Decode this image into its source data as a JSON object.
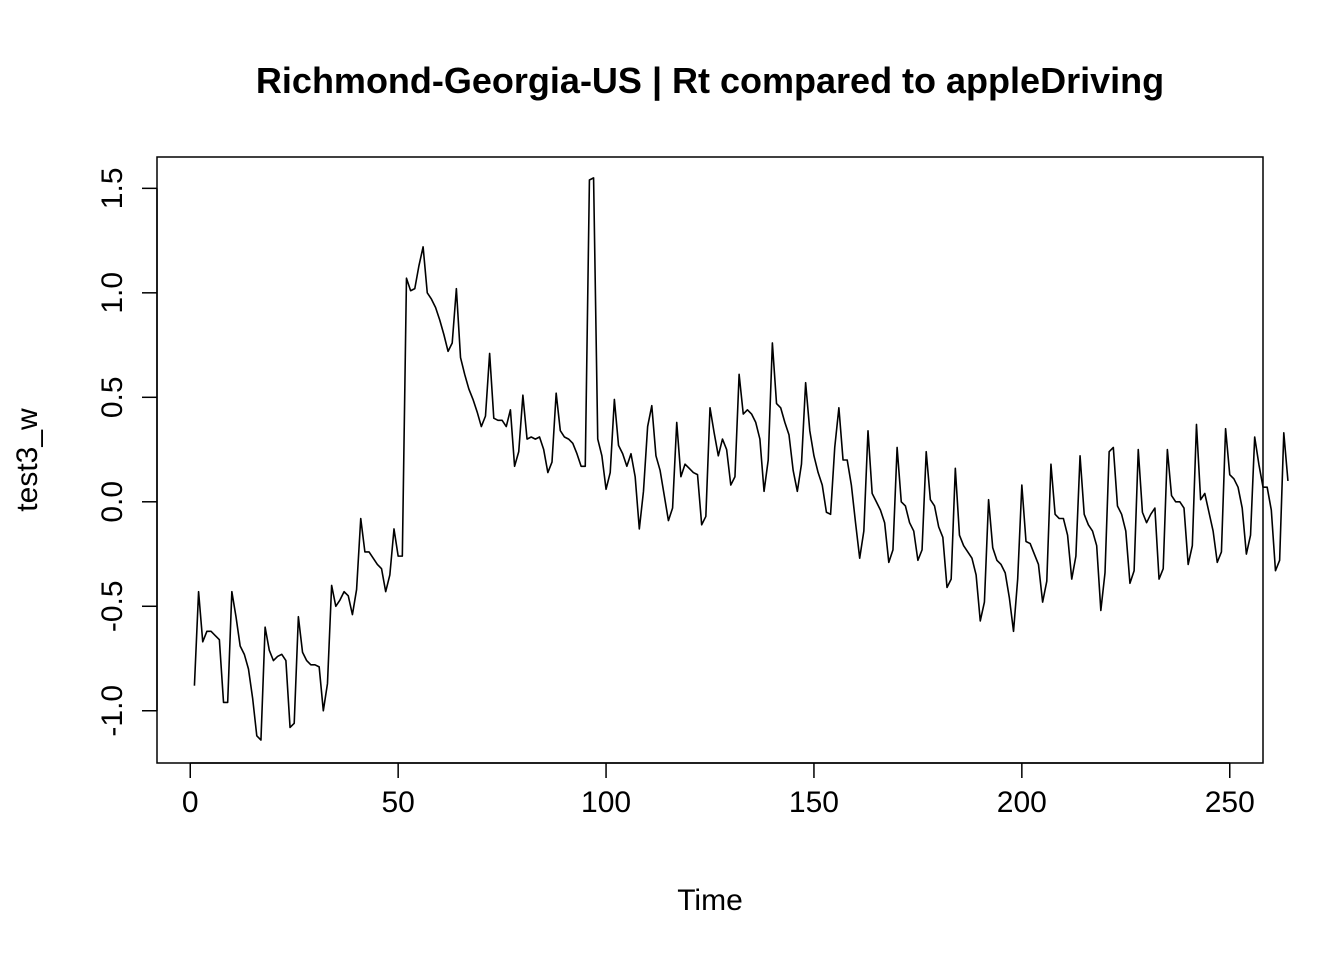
{
  "chart_data": {
    "type": "line",
    "title": "Richmond-Georgia-US | Rt compared to appleDriving",
    "xlabel": "Time",
    "ylabel": "test3_w",
    "xlim": [
      -8,
      258
    ],
    "ylim": [
      -1.25,
      1.65
    ],
    "xticks": [
      0,
      50,
      100,
      150,
      200,
      250
    ],
    "yticks": [
      -1.0,
      -0.5,
      0.0,
      0.5,
      1.0,
      1.5
    ],
    "xtick_labels": [
      "0",
      "50",
      "100",
      "150",
      "200",
      "250"
    ],
    "ytick_labels": [
      "-1.0",
      "-0.5",
      "0.0",
      "0.5",
      "1.0",
      "1.5"
    ],
    "grid": false,
    "legend": "none",
    "series": [
      {
        "color": "#000000",
        "x_start": 1,
        "values": [
          -0.88,
          -0.43,
          -0.67,
          -0.62,
          -0.62,
          -0.64,
          -0.66,
          -0.96,
          -0.96,
          -0.43,
          -0.55,
          -0.69,
          -0.73,
          -0.8,
          -0.94,
          -1.12,
          -1.14,
          -0.6,
          -0.71,
          -0.76,
          -0.74,
          -0.73,
          -0.76,
          -1.08,
          -1.06,
          -0.55,
          -0.72,
          -0.76,
          -0.78,
          -0.78,
          -0.79,
          -1.0,
          -0.87,
          -0.4,
          -0.5,
          -0.47,
          -0.43,
          -0.45,
          -0.54,
          -0.42,
          -0.08,
          -0.24,
          -0.24,
          -0.27,
          -0.3,
          -0.32,
          -0.43,
          -0.35,
          -0.13,
          -0.26,
          -0.26,
          1.07,
          1.01,
          1.02,
          1.13,
          1.22,
          1.0,
          0.97,
          0.93,
          0.87,
          0.8,
          0.72,
          0.76,
          1.02,
          0.69,
          0.61,
          0.54,
          0.49,
          0.43,
          0.36,
          0.41,
          0.71,
          0.4,
          0.39,
          0.39,
          0.36,
          0.44,
          0.17,
          0.24,
          0.51,
          0.3,
          0.31,
          0.3,
          0.31,
          0.25,
          0.14,
          0.19,
          0.52,
          0.34,
          0.31,
          0.3,
          0.28,
          0.23,
          0.17,
          0.17,
          1.54,
          1.55,
          0.3,
          0.22,
          0.06,
          0.14,
          0.49,
          0.27,
          0.23,
          0.17,
          0.23,
          0.12,
          -0.13,
          0.05,
          0.36,
          0.46,
          0.22,
          0.15,
          0.03,
          -0.09,
          -0.03,
          0.38,
          0.12,
          0.18,
          0.16,
          0.14,
          0.13,
          -0.11,
          -0.07,
          0.45,
          0.33,
          0.22,
          0.3,
          0.25,
          0.08,
          0.12,
          0.61,
          0.42,
          0.44,
          0.42,
          0.38,
          0.3,
          0.05,
          0.2,
          0.76,
          0.47,
          0.45,
          0.38,
          0.32,
          0.15,
          0.05,
          0.18,
          0.57,
          0.34,
          0.22,
          0.14,
          0.08,
          -0.05,
          -0.06,
          0.26,
          0.45,
          0.2,
          0.2,
          0.08,
          -0.1,
          -0.27,
          -0.14,
          0.34,
          0.04,
          0.0,
          -0.04,
          -0.1,
          -0.29,
          -0.23,
          0.26,
          0.0,
          -0.02,
          -0.1,
          -0.14,
          -0.28,
          -0.23,
          0.24,
          0.01,
          -0.02,
          -0.12,
          -0.17,
          -0.41,
          -0.37,
          0.16,
          -0.16,
          -0.21,
          -0.24,
          -0.27,
          -0.35,
          -0.57,
          -0.48,
          0.01,
          -0.22,
          -0.28,
          -0.3,
          -0.34,
          -0.46,
          -0.62,
          -0.37,
          0.08,
          -0.19,
          -0.2,
          -0.25,
          -0.3,
          -0.48,
          -0.38,
          0.18,
          -0.06,
          -0.08,
          -0.08,
          -0.16,
          -0.37,
          -0.26,
          0.22,
          -0.06,
          -0.11,
          -0.14,
          -0.21,
          -0.52,
          -0.34,
          0.24,
          0.26,
          -0.02,
          -0.06,
          -0.14,
          -0.39,
          -0.33,
          0.25,
          -0.05,
          -0.1,
          -0.06,
          -0.03,
          -0.37,
          -0.32,
          0.25,
          0.03,
          0.0,
          0.0,
          -0.03,
          -0.3,
          -0.21,
          0.37,
          0.01,
          0.04,
          -0.05,
          -0.14,
          -0.29,
          -0.24,
          0.35,
          0.13,
          0.11,
          0.07,
          -0.03,
          -0.25,
          -0.16,
          0.31,
          0.18,
          0.07,
          0.07,
          -0.04,
          -0.33,
          -0.28,
          0.33,
          0.1
        ]
      }
    ]
  }
}
